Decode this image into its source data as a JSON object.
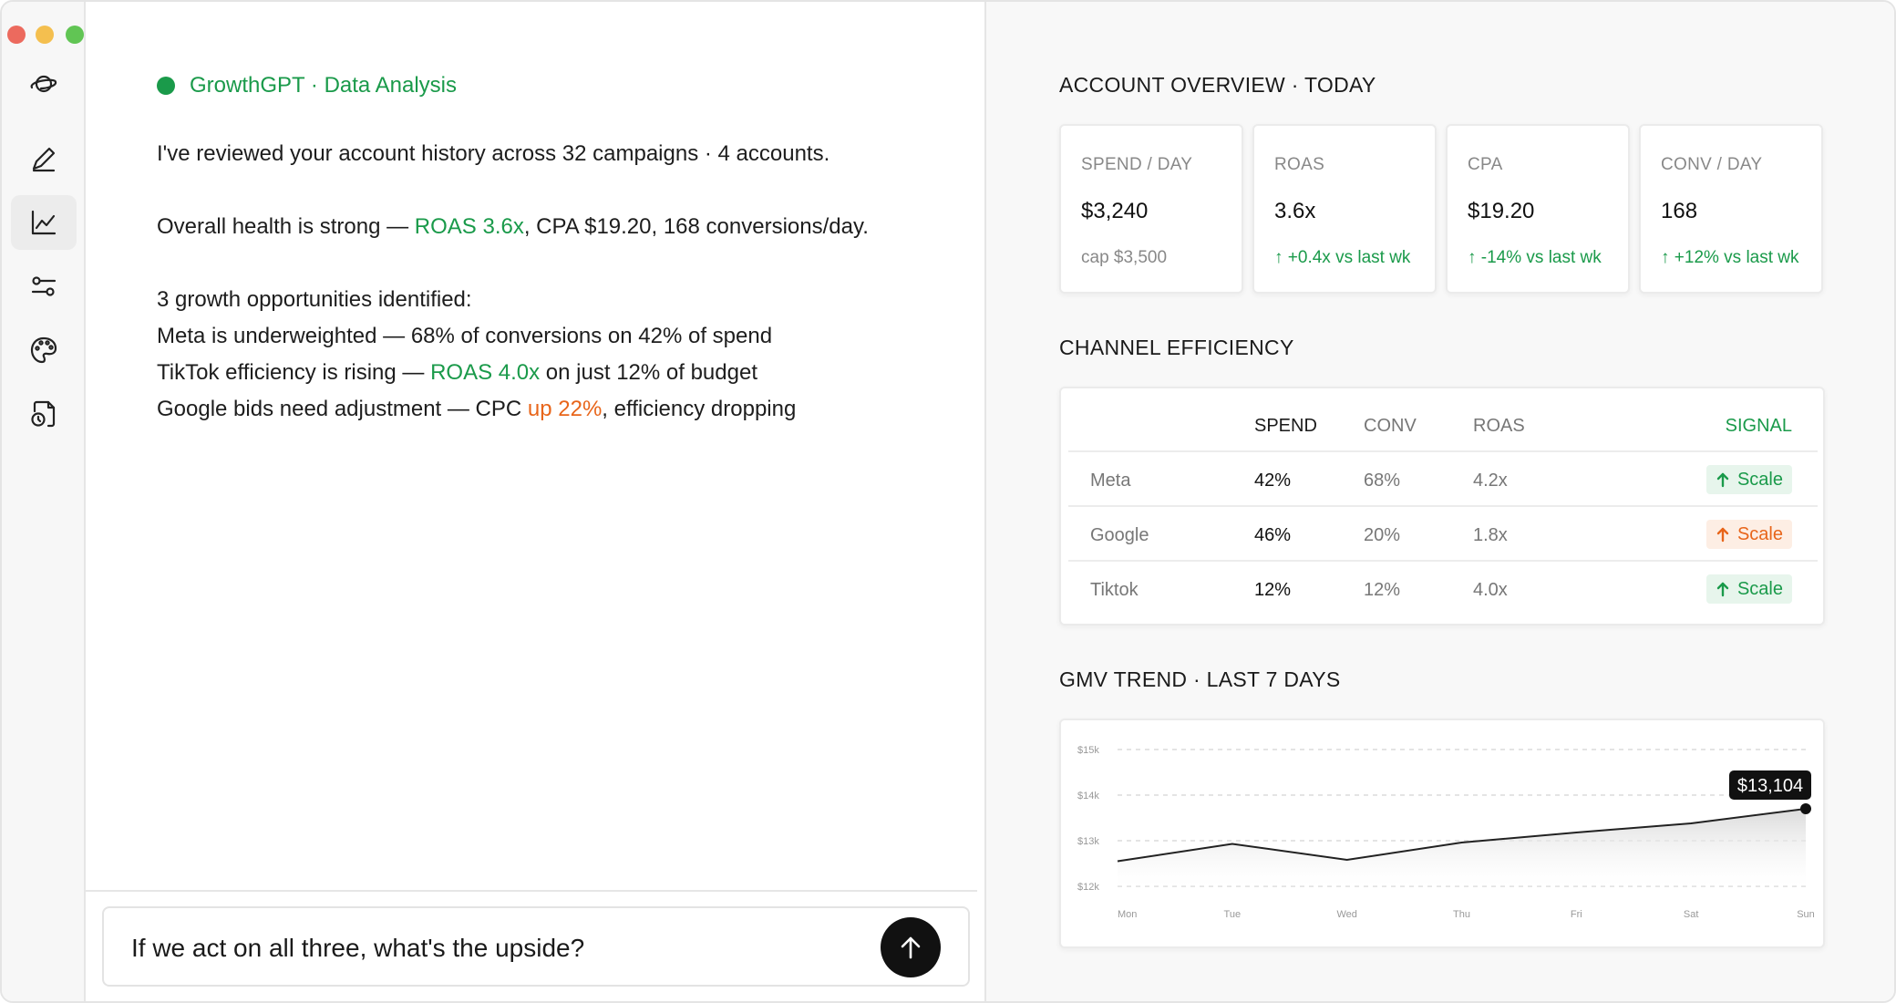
{
  "window": {
    "controls": [
      "close",
      "minimize",
      "zoom"
    ]
  },
  "sidebar": {
    "items": [
      {
        "name": "logo",
        "icon": "planet-icon",
        "active": false
      },
      {
        "name": "compose",
        "icon": "pencil-icon",
        "active": false
      },
      {
        "name": "analytics",
        "icon": "line-chart-icon",
        "active": true
      },
      {
        "name": "settings",
        "icon": "sliders-icon",
        "active": false
      },
      {
        "name": "themes",
        "icon": "palette-icon",
        "active": false
      },
      {
        "name": "reports",
        "icon": "document-clock-icon",
        "active": false
      }
    ]
  },
  "chat": {
    "agent_name": "GrowthGPT · Data Analysis",
    "intro": "I've reviewed your account history across 32 campaigns · 4 accounts.",
    "health": {
      "pre": "Overall health is strong — ",
      "roas": "ROAS 3.6x",
      "post": ", CPA $19.20, 168 conversions/day."
    },
    "opps_title": "3 growth opportunities identified:",
    "opp1": "Meta is underweighted — 68% of conversions on 42% of spend",
    "opp2": {
      "pre": "TikTok efficiency is rising — ",
      "roas": "ROAS 4.0x",
      "post": " on just 12% of budget"
    },
    "opp3": {
      "pre": "Google bids need adjustment — CPC ",
      "up": "up 22%",
      "post": ", efficiency dropping"
    },
    "composer": {
      "value": "If we act on all three, what's the upside?"
    }
  },
  "overview": {
    "title": "ACCOUNT OVERVIEW · TODAY",
    "kpis": [
      {
        "label": "SPEND / DAY",
        "value": "$3,240",
        "sub": "cap $3,500",
        "trend": false
      },
      {
        "label": "ROAS",
        "value": "3.6x",
        "sub": "+0.4x vs last wk",
        "trend": true
      },
      {
        "label": "CPA",
        "value": "$19.20",
        "sub": "-14% vs last wk",
        "trend": true
      },
      {
        "label": "CONV / DAY",
        "value": "168",
        "sub": "+12% vs last wk",
        "trend": true
      }
    ]
  },
  "channels": {
    "title": "CHANNEL EFFICIENCY",
    "headers": {
      "spend": "SPEND",
      "conv": "CONV",
      "roas": "ROAS",
      "signal": "SIGNAL"
    },
    "rows": [
      {
        "name": "Meta",
        "spend": "42%",
        "conv": "68%",
        "roas": "4.2x",
        "signal": "Scale",
        "signal_color": "#1a9a4a"
      },
      {
        "name": "Google",
        "spend": "46%",
        "conv": "20%",
        "roas": "1.8x",
        "signal": "Scale",
        "signal_color": "#e8651a"
      },
      {
        "name": "Tiktok",
        "spend": "12%",
        "conv": "12%",
        "roas": "4.0x",
        "signal": "Scale",
        "signal_color": "#1a9a4a"
      }
    ]
  },
  "trend": {
    "title": "GMV TREND · LAST 7 DAYS"
  },
  "chart_data": {
    "type": "area",
    "categories": [
      "Mon",
      "Tue",
      "Wed",
      "Thu",
      "Fri",
      "Sat",
      "Sun"
    ],
    "values": [
      12550,
      12930,
      12580,
      12960,
      13180,
      13380,
      13104
    ],
    "y_ticks": [
      "$12k",
      "$13k",
      "$14k",
      "$15k"
    ],
    "ylim": [
      12000,
      15000
    ],
    "callout": "$13,104",
    "grid": true,
    "line_color": "#222222"
  },
  "colors": {
    "accent_green": "#1a9a4a",
    "accent_orange": "#e8651a"
  }
}
